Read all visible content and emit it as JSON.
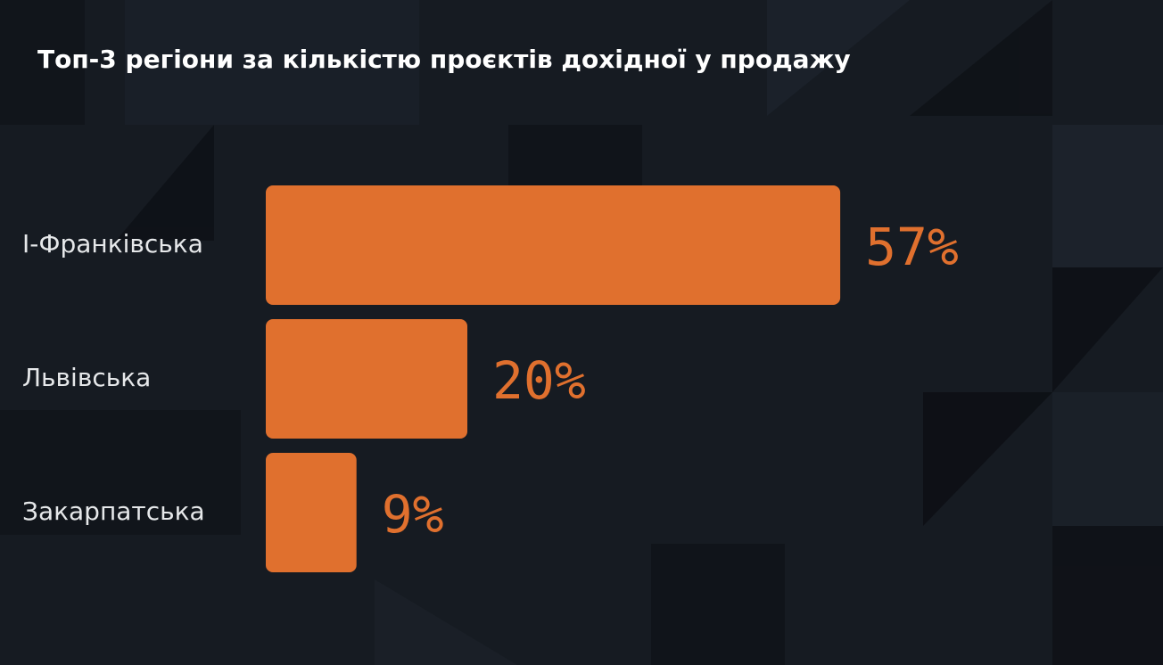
{
  "chart_data": {
    "type": "bar",
    "orientation": "horizontal",
    "title": "Топ-3 регіони за кількістю проєктів дохідної у продажу",
    "categories": [
      "І-Франківська",
      "Львівська",
      "Закарпатська"
    ],
    "values": [
      57,
      20,
      9
    ],
    "value_labels": [
      "57%",
      "20%",
      "9%"
    ],
    "color": "#e0702e"
  }
}
